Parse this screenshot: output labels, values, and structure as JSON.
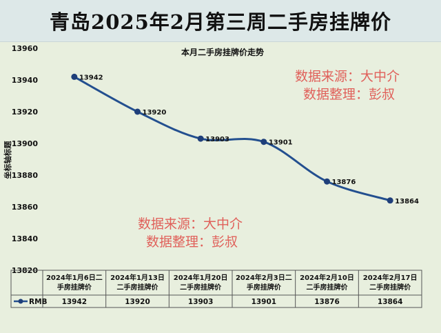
{
  "banner_title": "青岛2025年2月第三周二手房挂牌价",
  "watermark": {
    "line1": "数据来源：大中介",
    "line2": "数据整理：彭叔"
  },
  "colors": {
    "line": "#234f8f",
    "marker": "#1f3f7a",
    "plot_bg": "#e8efde",
    "banner_bg": "#dde8e8",
    "watermark": "#e0605a"
  },
  "chart_data": {
    "type": "line",
    "title": "本月二手房挂牌价走势",
    "ylabel": "坐标轴标题",
    "ylim": [
      13820,
      13960
    ],
    "yticks": [
      13820,
      13840,
      13860,
      13880,
      13900,
      13920,
      13940,
      13960
    ],
    "categories": [
      [
        "2024年1月6日二",
        "手房挂牌价"
      ],
      [
        "2024年1月13日",
        "二手房挂牌价"
      ],
      [
        "2024年1月20日",
        "二手房挂牌价"
      ],
      [
        "2024年2月3日二",
        "手房挂牌价"
      ],
      [
        "2024年2月10日",
        "二手房挂牌价"
      ],
      [
        "2024年2月17日",
        "二手房挂牌价"
      ]
    ],
    "series": [
      {
        "name": "RMB",
        "values": [
          13942,
          13920,
          13903,
          13901,
          13876,
          13864
        ]
      }
    ],
    "smooth": true,
    "data_table": true,
    "grid": false
  }
}
